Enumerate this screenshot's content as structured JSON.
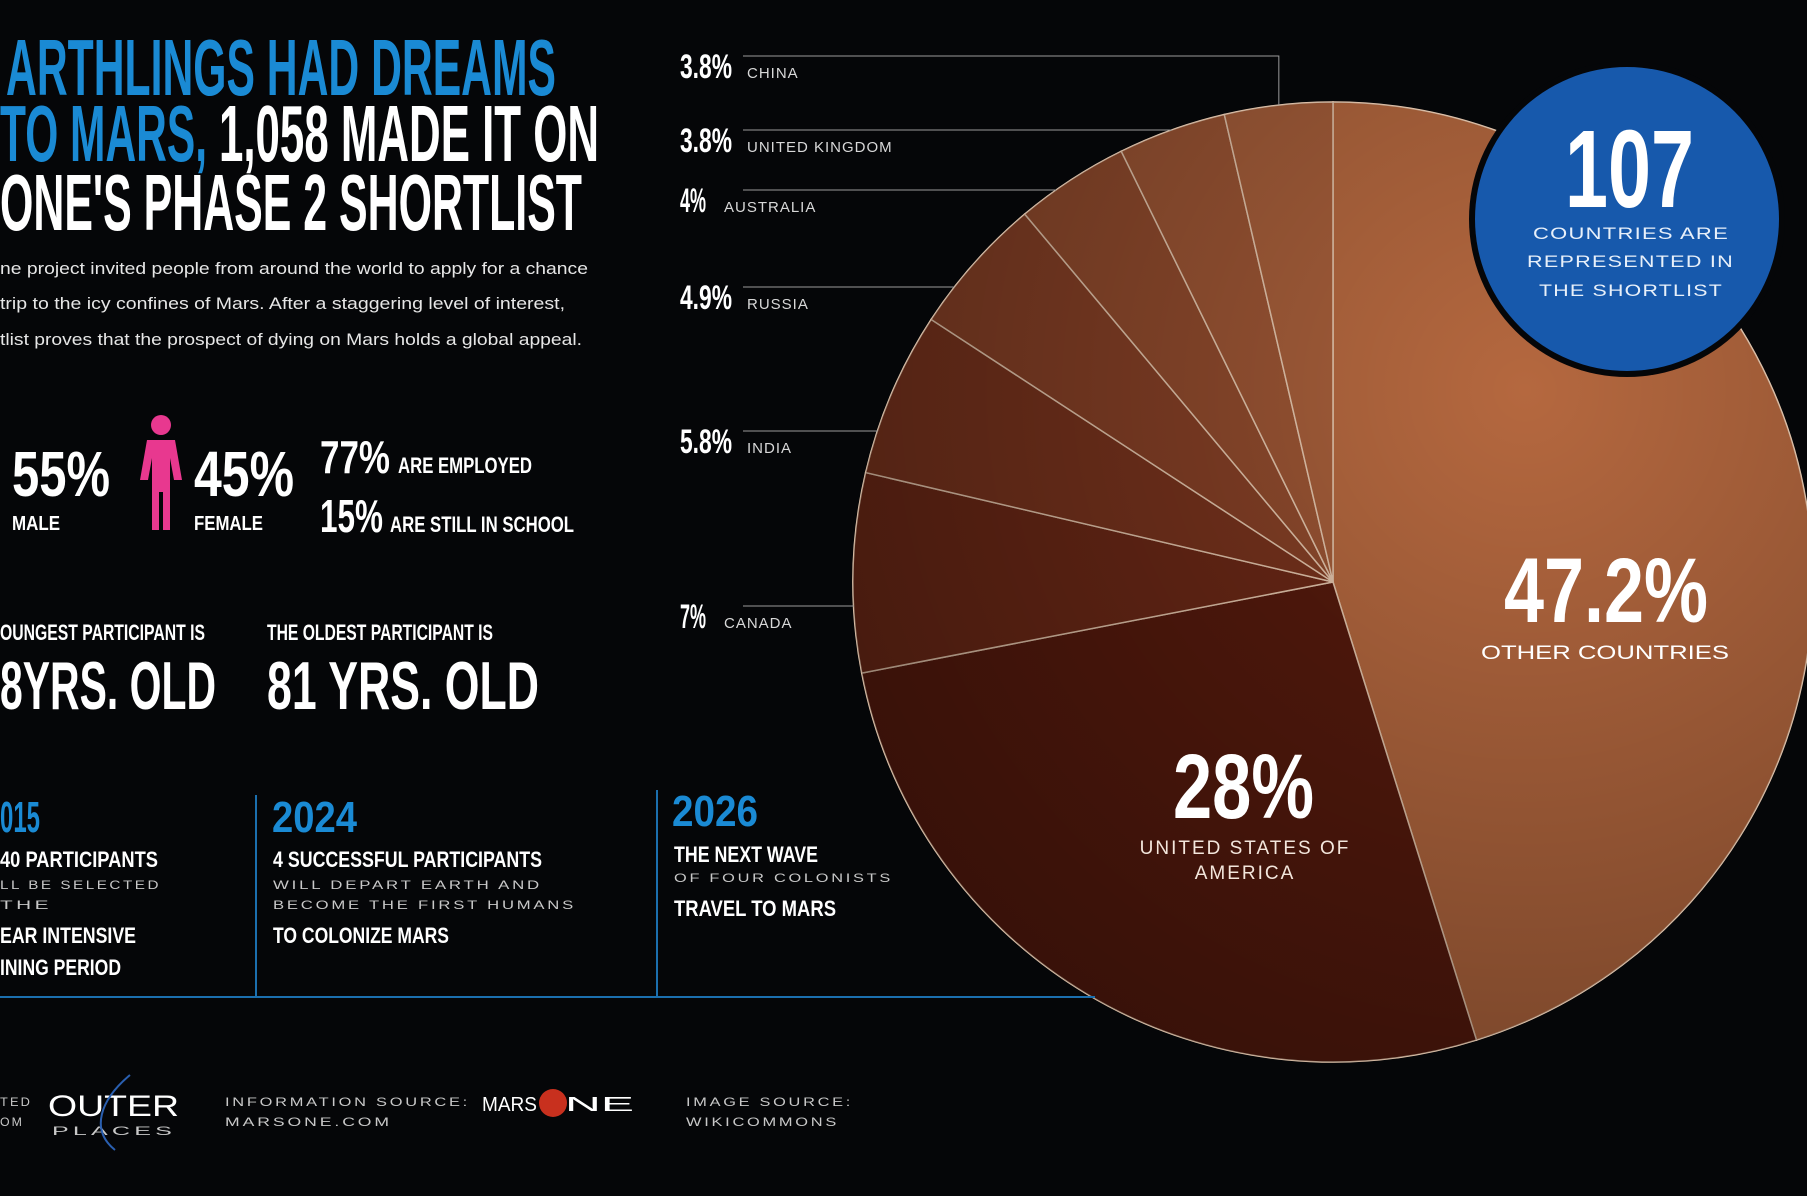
{
  "header": {
    "title_line_1": "ARTHLINGS HAD DREAMS",
    "title_line_2_blue": "TO MARS,",
    "title_line_2_white": "1,058 MADE IT ON",
    "title_line_3": "ONE'S PHASE 2 SHORTLIST",
    "intro": [
      "ne project invited people from around the world to apply for a chance",
      "trip to the icy confines of Mars. After a staggering level of interest,",
      "tlist proves that the prospect of dying on Mars holds a global appeal."
    ]
  },
  "stats": {
    "male": {
      "value": "55%",
      "label": "MALE"
    },
    "female": {
      "value": "45%",
      "label": "FEMALE"
    },
    "employed": {
      "value": "77%",
      "label": "ARE EMPLOYED"
    },
    "school": {
      "value": "15%",
      "label": "ARE STILL IN SCHOOL"
    }
  },
  "ages": {
    "youngest": {
      "label": "OUNGEST PARTICIPANT IS",
      "value": "8YRS. OLD"
    },
    "oldest": {
      "label": "THE OLDEST PARTICIPANT IS",
      "value": "81 YRS. OLD"
    }
  },
  "timeline": [
    {
      "year": "015",
      "lines": [
        "40 PARTICIPANTS",
        "LL BE SELECTED",
        "THE",
        "EAR INTENSIVE",
        "INING PERIOD"
      ]
    },
    {
      "year": "2024",
      "lines": [
        "4 SUCCESSFUL PARTICIPANTS",
        "WILL DEPART EARTH AND",
        "BECOME THE FIRST HUMANS",
        "TO COLONIZE MARS"
      ]
    },
    {
      "year": "2026",
      "lines": [
        "THE NEXT WAVE",
        "OF FOUR COLONISTS",
        "TRAVEL TO MARS"
      ]
    }
  ],
  "badge": {
    "count": "107",
    "lines": [
      "COUNTRIES ARE",
      "REPRESENTED IN",
      "THE SHORTLIST"
    ]
  },
  "footer": {
    "created": [
      "TED",
      "OM"
    ],
    "brand": "OUTER",
    "brand_sub": "PLACES",
    "info_label": "INFORMATION SOURCE:",
    "info_source": "MARSONE.COM",
    "logo_left": "MARS",
    "logo_right": "NE",
    "image_label": "IMAGE SOURCE:",
    "image_source": "WIKICOMMONS"
  },
  "chart_data": {
    "type": "pie",
    "categories": [
      "OTHER COUNTRIES",
      "UNITED STATES OF AMERICA",
      "CANADA",
      "INDIA",
      "RUSSIA",
      "AUSTRALIA",
      "UNITED KINGDOM",
      "CHINA"
    ],
    "values": [
      47.2,
      28,
      7,
      5.8,
      4.9,
      4,
      3.8,
      3.8
    ],
    "value_labels": [
      "47.2%",
      "28%",
      "7%",
      "5.8%",
      "4.9%",
      "4%",
      "3.8%",
      "3.8%"
    ],
    "colors": [
      "#b5683f",
      "#561a0d",
      "#6b2816",
      "#78331d",
      "#864026",
      "#914b2d",
      "#9c5534",
      "#a65e3a"
    ]
  }
}
